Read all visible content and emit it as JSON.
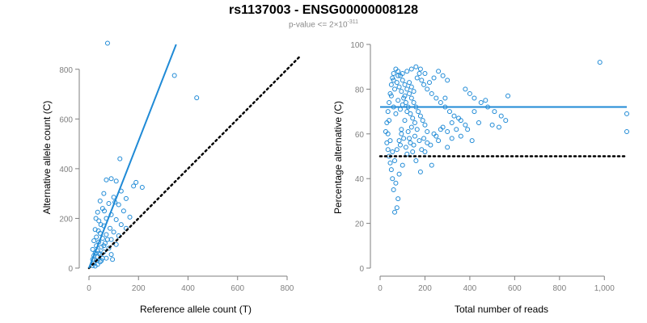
{
  "page": {
    "title": "rs1137003 - ENSG00000008128",
    "subtitle_prefix": "p-value <= 2×10",
    "subtitle_exponent": "-311"
  },
  "colors": {
    "points": "#1f8ad6",
    "fit": "#1f8ad6",
    "reference": "#000000",
    "axis": "#7f7f7f"
  },
  "chart_data": [
    {
      "type": "scatter",
      "xlabel": "Reference allele count (T)",
      "ylabel": "Alternative allele count (C)",
      "xlim": [
        0,
        800
      ],
      "ylim": [
        0,
        900
      ],
      "xticks": [
        0,
        200,
        400,
        600,
        800
      ],
      "xtick_labels": [
        "0",
        "200",
        "400",
        "600",
        "800"
      ],
      "yticks": [
        0,
        200,
        400,
        600,
        800
      ],
      "ytick_labels": [
        "0",
        "200",
        "400",
        "600",
        "800"
      ],
      "grid": false,
      "fit_line": {
        "x": [
          0,
          352
        ],
        "y": [
          0,
          900
        ]
      },
      "reference_line": {
        "x": [
          0,
          850
        ],
        "y": [
          0,
          850
        ],
        "style": "dotted"
      },
      "points": [
        [
          75,
          905
        ],
        [
          345,
          775
        ],
        [
          435,
          685
        ],
        [
          125,
          440
        ],
        [
          190,
          345
        ],
        [
          180,
          330
        ],
        [
          215,
          325
        ],
        [
          70,
          355
        ],
        [
          90,
          360
        ],
        [
          110,
          350
        ],
        [
          130,
          310
        ],
        [
          60,
          300
        ],
        [
          150,
          280
        ],
        [
          100,
          285
        ],
        [
          45,
          270
        ],
        [
          80,
          260
        ],
        [
          120,
          255
        ],
        [
          55,
          240
        ],
        [
          140,
          230
        ],
        [
          35,
          225
        ],
        [
          90,
          215
        ],
        [
          165,
          205
        ],
        [
          70,
          200
        ],
        [
          110,
          195
        ],
        [
          40,
          190
        ],
        [
          130,
          175
        ],
        [
          60,
          170
        ],
        [
          85,
          160
        ],
        [
          150,
          160
        ],
        [
          25,
          155
        ],
        [
          100,
          145
        ],
        [
          45,
          140
        ],
        [
          70,
          135
        ],
        [
          120,
          130
        ],
        [
          30,
          125
        ],
        [
          55,
          120
        ],
        [
          90,
          115
        ],
        [
          20,
          110
        ],
        [
          40,
          105
        ],
        [
          65,
          100
        ],
        [
          110,
          95
        ],
        [
          30,
          90
        ],
        [
          50,
          85
        ],
        [
          80,
          80
        ],
        [
          15,
          75
        ],
        [
          35,
          70
        ],
        [
          60,
          65
        ],
        [
          25,
          60
        ],
        [
          45,
          55
        ],
        [
          90,
          55
        ],
        [
          20,
          50
        ],
        [
          35,
          45
        ],
        [
          55,
          40
        ],
        [
          15,
          35
        ],
        [
          30,
          30
        ],
        [
          45,
          25
        ],
        [
          20,
          20
        ],
        [
          35,
          15
        ],
        [
          15,
          10
        ],
        [
          25,
          8
        ],
        [
          50,
          30
        ],
        [
          70,
          40
        ],
        [
          95,
          35
        ],
        [
          40,
          60
        ],
        [
          60,
          90
        ],
        [
          75,
          115
        ],
        [
          48,
          175
        ],
        [
          28,
          200
        ],
        [
          62,
          230
        ],
        [
          105,
          265
        ],
        [
          38,
          150
        ]
      ]
    },
    {
      "type": "scatter",
      "xlabel": "Total number of reads",
      "ylabel": "Percentage alternative (C)",
      "xlim": [
        0,
        1100
      ],
      "ylim": [
        0,
        100
      ],
      "xticks": [
        0,
        200,
        400,
        600,
        800,
        1000
      ],
      "xtick_labels": [
        "0",
        "200",
        "400",
        "600",
        "800",
        "1,000"
      ],
      "yticks": [
        0,
        20,
        40,
        60,
        80,
        100
      ],
      "ytick_labels": [
        "0",
        "20",
        "40",
        "60",
        "80",
        "100"
      ],
      "grid": false,
      "fit_line": {
        "x": [
          0,
          1100
        ],
        "y": [
          72,
          72
        ]
      },
      "reference_line": {
        "x": [
          0,
          1100
        ],
        "y": [
          50,
          50
        ],
        "style": "dotted"
      },
      "points": [
        [
          980,
          92
        ],
        [
          1100,
          69
        ],
        [
          1100,
          61
        ],
        [
          570,
          77
        ],
        [
          530,
          63
        ],
        [
          500,
          64
        ],
        [
          470,
          75
        ],
        [
          440,
          65
        ],
        [
          420,
          70
        ],
        [
          410,
          57
        ],
        [
          390,
          62
        ],
        [
          350,
          67
        ],
        [
          320,
          58
        ],
        [
          300,
          54
        ],
        [
          290,
          76
        ],
        [
          270,
          62
        ],
        [
          250,
          59
        ],
        [
          230,
          46
        ],
        [
          210,
          56
        ],
        [
          200,
          52
        ],
        [
          180,
          43
        ],
        [
          160,
          48
        ],
        [
          150,
          55
        ],
        [
          140,
          63
        ],
        [
          130,
          58
        ],
        [
          120,
          51
        ],
        [
          110,
          66
        ],
        [
          100,
          46
        ],
        [
          95,
          60
        ],
        [
          90,
          55
        ],
        [
          85,
          42
        ],
        [
          80,
          31
        ],
        [
          75,
          27
        ],
        [
          70,
          38
        ],
        [
          65,
          25
        ],
        [
          60,
          35
        ],
        [
          55,
          40
        ],
        [
          50,
          44
        ],
        [
          45,
          47
        ],
        [
          40,
          50
        ],
        [
          35,
          53
        ],
        [
          30,
          56
        ],
        [
          25,
          61
        ],
        [
          30,
          65
        ],
        [
          35,
          70
        ],
        [
          40,
          74
        ],
        [
          45,
          78
        ],
        [
          50,
          82
        ],
        [
          55,
          85
        ],
        [
          60,
          87
        ],
        [
          70,
          89
        ],
        [
          80,
          88
        ],
        [
          90,
          86
        ],
        [
          100,
          84
        ],
        [
          110,
          82
        ],
        [
          120,
          80
        ],
        [
          130,
          78
        ],
        [
          140,
          76
        ],
        [
          150,
          74
        ],
        [
          160,
          72
        ],
        [
          170,
          70
        ],
        [
          180,
          68
        ],
        [
          190,
          66
        ],
        [
          200,
          64
        ],
        [
          60,
          72
        ],
        [
          70,
          69
        ],
        [
          80,
          75
        ],
        [
          90,
          71
        ],
        [
          100,
          73
        ],
        [
          110,
          77
        ],
        [
          120,
          70
        ],
        [
          130,
          83
        ],
        [
          140,
          81
        ],
        [
          150,
          79
        ],
        [
          65,
          80
        ],
        [
          75,
          83
        ],
        [
          85,
          81
        ],
        [
          95,
          79
        ],
        [
          105,
          76
        ],
        [
          115,
          74
        ],
        [
          125,
          72
        ],
        [
          135,
          69
        ],
        [
          145,
          67
        ],
        [
          155,
          65
        ],
        [
          165,
          85
        ],
        [
          175,
          87
        ],
        [
          185,
          84
        ],
        [
          195,
          82
        ],
        [
          210,
          80
        ],
        [
          230,
          78
        ],
        [
          250,
          76
        ],
        [
          270,
          74
        ],
        [
          290,
          72
        ],
        [
          310,
          70
        ],
        [
          330,
          68
        ],
        [
          360,
          66
        ],
        [
          380,
          80
        ],
        [
          400,
          78
        ],
        [
          420,
          76
        ],
        [
          450,
          74
        ],
        [
          480,
          72
        ],
        [
          510,
          70
        ],
        [
          540,
          68
        ],
        [
          560,
          66
        ],
        [
          300,
          84
        ],
        [
          280,
          86
        ],
        [
          260,
          88
        ],
        [
          240,
          85
        ],
        [
          220,
          83
        ],
        [
          200,
          87
        ],
        [
          180,
          89
        ],
        [
          160,
          90
        ],
        [
          140,
          89
        ],
        [
          120,
          88
        ],
        [
          100,
          87
        ],
        [
          80,
          86
        ],
        [
          60,
          84
        ],
        [
          50,
          77
        ],
        [
          40,
          66
        ],
        [
          35,
          60
        ],
        [
          45,
          57
        ],
        [
          55,
          52
        ],
        [
          65,
          48
        ],
        [
          75,
          53
        ],
        [
          85,
          57
        ],
        [
          95,
          62
        ],
        [
          105,
          58
        ],
        [
          115,
          54
        ],
        [
          125,
          61
        ],
        [
          135,
          56
        ],
        [
          145,
          52
        ],
        [
          155,
          59
        ],
        [
          165,
          62
        ],
        [
          175,
          57
        ],
        [
          185,
          53
        ],
        [
          195,
          58
        ],
        [
          210,
          61
        ],
        [
          225,
          55
        ],
        [
          240,
          60
        ],
        [
          260,
          57
        ],
        [
          280,
          63
        ],
        [
          300,
          61
        ],
        [
          320,
          65
        ],
        [
          340,
          62
        ],
        [
          360,
          59
        ],
        [
          380,
          64
        ]
      ]
    }
  ]
}
